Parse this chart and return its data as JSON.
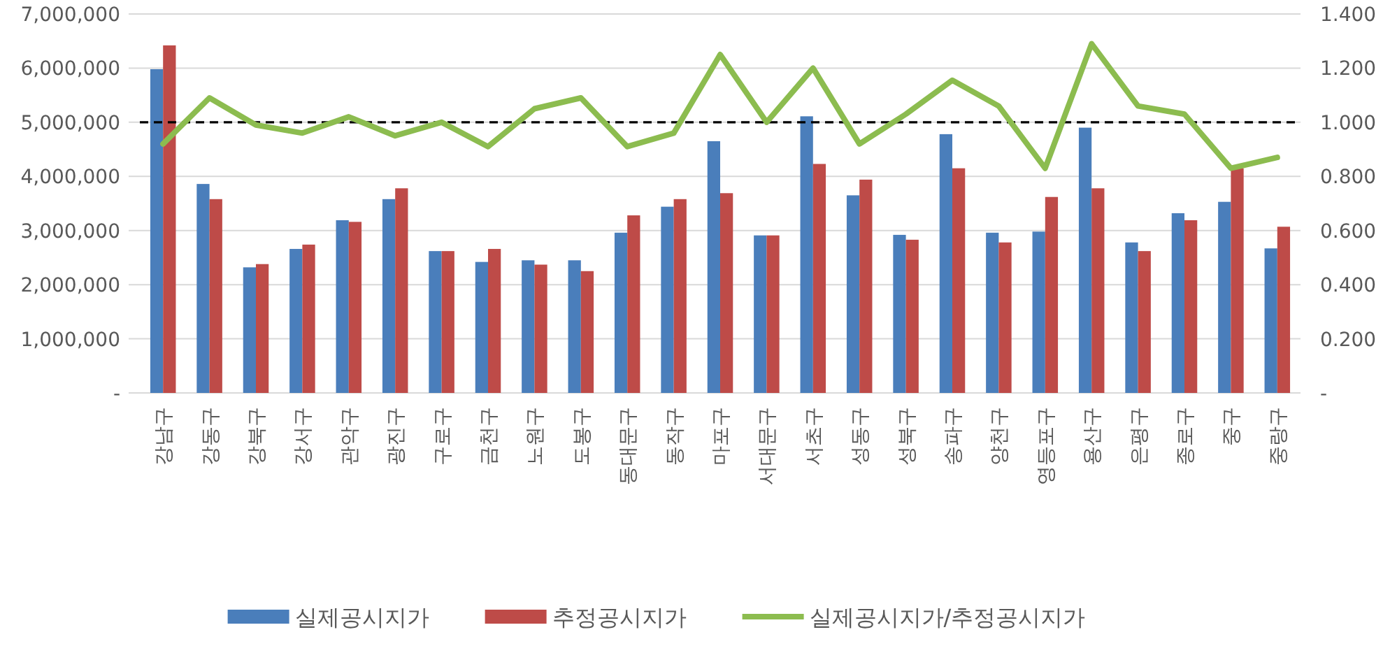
{
  "chart_data": {
    "type": "bar",
    "categories": [
      "강남구",
      "강동구",
      "강북구",
      "강서구",
      "관악구",
      "광진구",
      "구로구",
      "금천구",
      "노원구",
      "도봉구",
      "동대문구",
      "동작구",
      "마포구",
      "서대문구",
      "서초구",
      "성동구",
      "성북구",
      "송파구",
      "양천구",
      "영등포구",
      "용산구",
      "은평구",
      "종로구",
      "중구",
      "중랑구"
    ],
    "series": [
      {
        "name": "실제공시지가",
        "color": "#4a7ebb",
        "values": [
          5980000,
          3860000,
          2320000,
          2660000,
          3190000,
          3580000,
          2620000,
          2420000,
          2450000,
          2450000,
          2960000,
          3440000,
          4650000,
          2910000,
          5110000,
          3650000,
          2920000,
          4780000,
          2960000,
          2980000,
          4900000,
          2780000,
          3320000,
          3530000,
          2670000
        ]
      },
      {
        "name": "추정공시지가",
        "color": "#be4b48",
        "values": [
          6420000,
          3580000,
          2380000,
          2740000,
          3160000,
          3780000,
          2620000,
          2660000,
          2370000,
          2250000,
          3280000,
          3580000,
          3690000,
          2910000,
          4230000,
          3940000,
          2830000,
          4150000,
          2780000,
          3620000,
          3780000,
          2620000,
          3190000,
          4150000,
          3070000
        ]
      },
      {
        "name": "실제공시지가/추정공시지가",
        "type": "line",
        "axis": "y2",
        "color": "#8cbc4f",
        "values": [
          0.92,
          1.09,
          0.99,
          0.96,
          1.02,
          0.95,
          1.0,
          0.91,
          1.05,
          1.09,
          0.91,
          0.96,
          1.25,
          1.0,
          1.2,
          0.92,
          1.03,
          1.155,
          1.06,
          0.83,
          1.29,
          1.06,
          1.03,
          0.83,
          0.87
        ]
      }
    ],
    "ylim": [
      0,
      7000000
    ],
    "yticks": [
      {
        "value": 0,
        "label": "-"
      },
      {
        "value": 1000000,
        "label": "1,000,000"
      },
      {
        "value": 2000000,
        "label": "2,000,000"
      },
      {
        "value": 3000000,
        "label": "3,000,000"
      },
      {
        "value": 4000000,
        "label": "4,000,000"
      },
      {
        "value": 5000000,
        "label": "5,000,000"
      },
      {
        "value": 6000000,
        "label": "6,000,000"
      },
      {
        "value": 7000000,
        "label": "7,000,000"
      }
    ],
    "y2lim": [
      0,
      1.4
    ],
    "y2ticks": [
      {
        "value": 0,
        "label": "-"
      },
      {
        "value": 0.2,
        "label": "0.200"
      },
      {
        "value": 0.4,
        "label": "0.400"
      },
      {
        "value": 0.6,
        "label": "0.600"
      },
      {
        "value": 0.8,
        "label": "0.800"
      },
      {
        "value": 1.0,
        "label": "1.000"
      },
      {
        "value": 1.2,
        "label": "1.200"
      },
      {
        "value": 1.4,
        "label": "1.400"
      }
    ],
    "ref_lines": [
      {
        "axis": "y2",
        "value": 1.0,
        "color": "#000000",
        "line_style": "dashed"
      }
    ],
    "grid": "y",
    "legend": "bottom"
  }
}
